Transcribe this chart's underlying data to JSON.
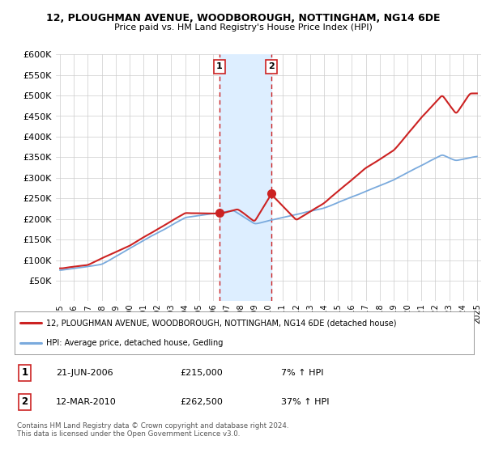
{
  "title": "12, PLOUGHMAN AVENUE, WOODBOROUGH, NOTTINGHAM, NG14 6DE",
  "subtitle": "Price paid vs. HM Land Registry's House Price Index (HPI)",
  "legend_line1": "12, PLOUGHMAN AVENUE, WOODBOROUGH, NOTTINGHAM, NG14 6DE (detached house)",
  "legend_line2": "HPI: Average price, detached house, Gedling",
  "transaction1_date": "21-JUN-2006",
  "transaction1_price": "£215,000",
  "transaction1_hpi": "7% ↑ HPI",
  "transaction2_date": "12-MAR-2010",
  "transaction2_price": "£262,500",
  "transaction2_hpi": "37% ↑ HPI",
  "footer": "Contains HM Land Registry data © Crown copyright and database right 2024.\nThis data is licensed under the Open Government Licence v3.0.",
  "red_color": "#cc2222",
  "blue_color": "#7aaadd",
  "shading_color": "#ddeeff",
  "vline_color": "#cc2222",
  "grid_color": "#cccccc",
  "ylim": [
    0,
    600000
  ],
  "yticks": [
    0,
    50000,
    100000,
    150000,
    200000,
    250000,
    300000,
    350000,
    400000,
    450000,
    500000,
    550000,
    600000
  ],
  "transaction1_year": 2006.47,
  "transaction2_year": 2010.19,
  "transaction1_price_val": 215000,
  "transaction2_price_val": 262500,
  "background_color": "#ffffff"
}
